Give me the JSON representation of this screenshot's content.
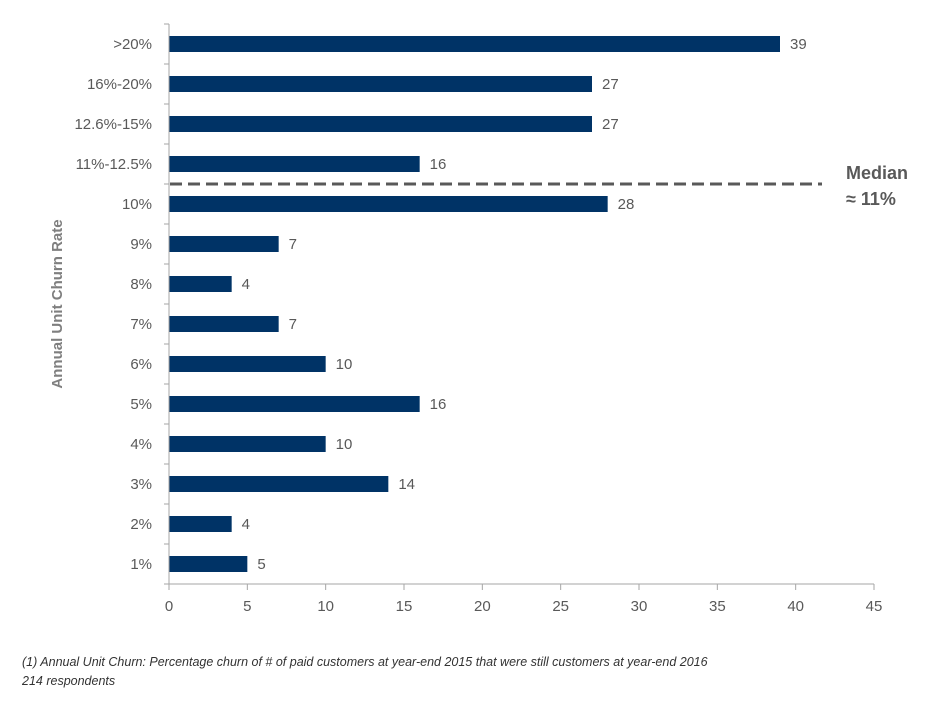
{
  "chart_data": {
    "type": "bar",
    "orientation": "horizontal",
    "categories": [
      ">20%",
      "16%-20%",
      "12.6%-15%",
      "11%-12.5%",
      "10%",
      "9%",
      "8%",
      "7%",
      "6%",
      "5%",
      "4%",
      "3%",
      "2%",
      "1%"
    ],
    "values": [
      39,
      27,
      27,
      16,
      28,
      7,
      4,
      7,
      10,
      16,
      10,
      14,
      4,
      5
    ],
    "ylabel": "Annual Unit Churn Rate",
    "xlabel": "",
    "xlim": [
      0,
      45
    ],
    "xticks": [
      "0",
      "5",
      "10",
      "15",
      "20",
      "25",
      "30",
      "35",
      "40",
      "45"
    ],
    "bar_color": "#003366",
    "grid": false,
    "annotations": {
      "median_line": {
        "between_categories": [
          "11%-12.5%",
          "10%"
        ],
        "style": "dashed",
        "color": "#595959",
        "label_line1": "Median",
        "label_line2": "≈ 11%"
      }
    }
  },
  "footnotes": {
    "note1": "(1)    Annual Unit Churn: Percentage churn of # of paid customers at year-end 2015 that were still customers at year-end 2016",
    "note2": "214 respondents"
  }
}
